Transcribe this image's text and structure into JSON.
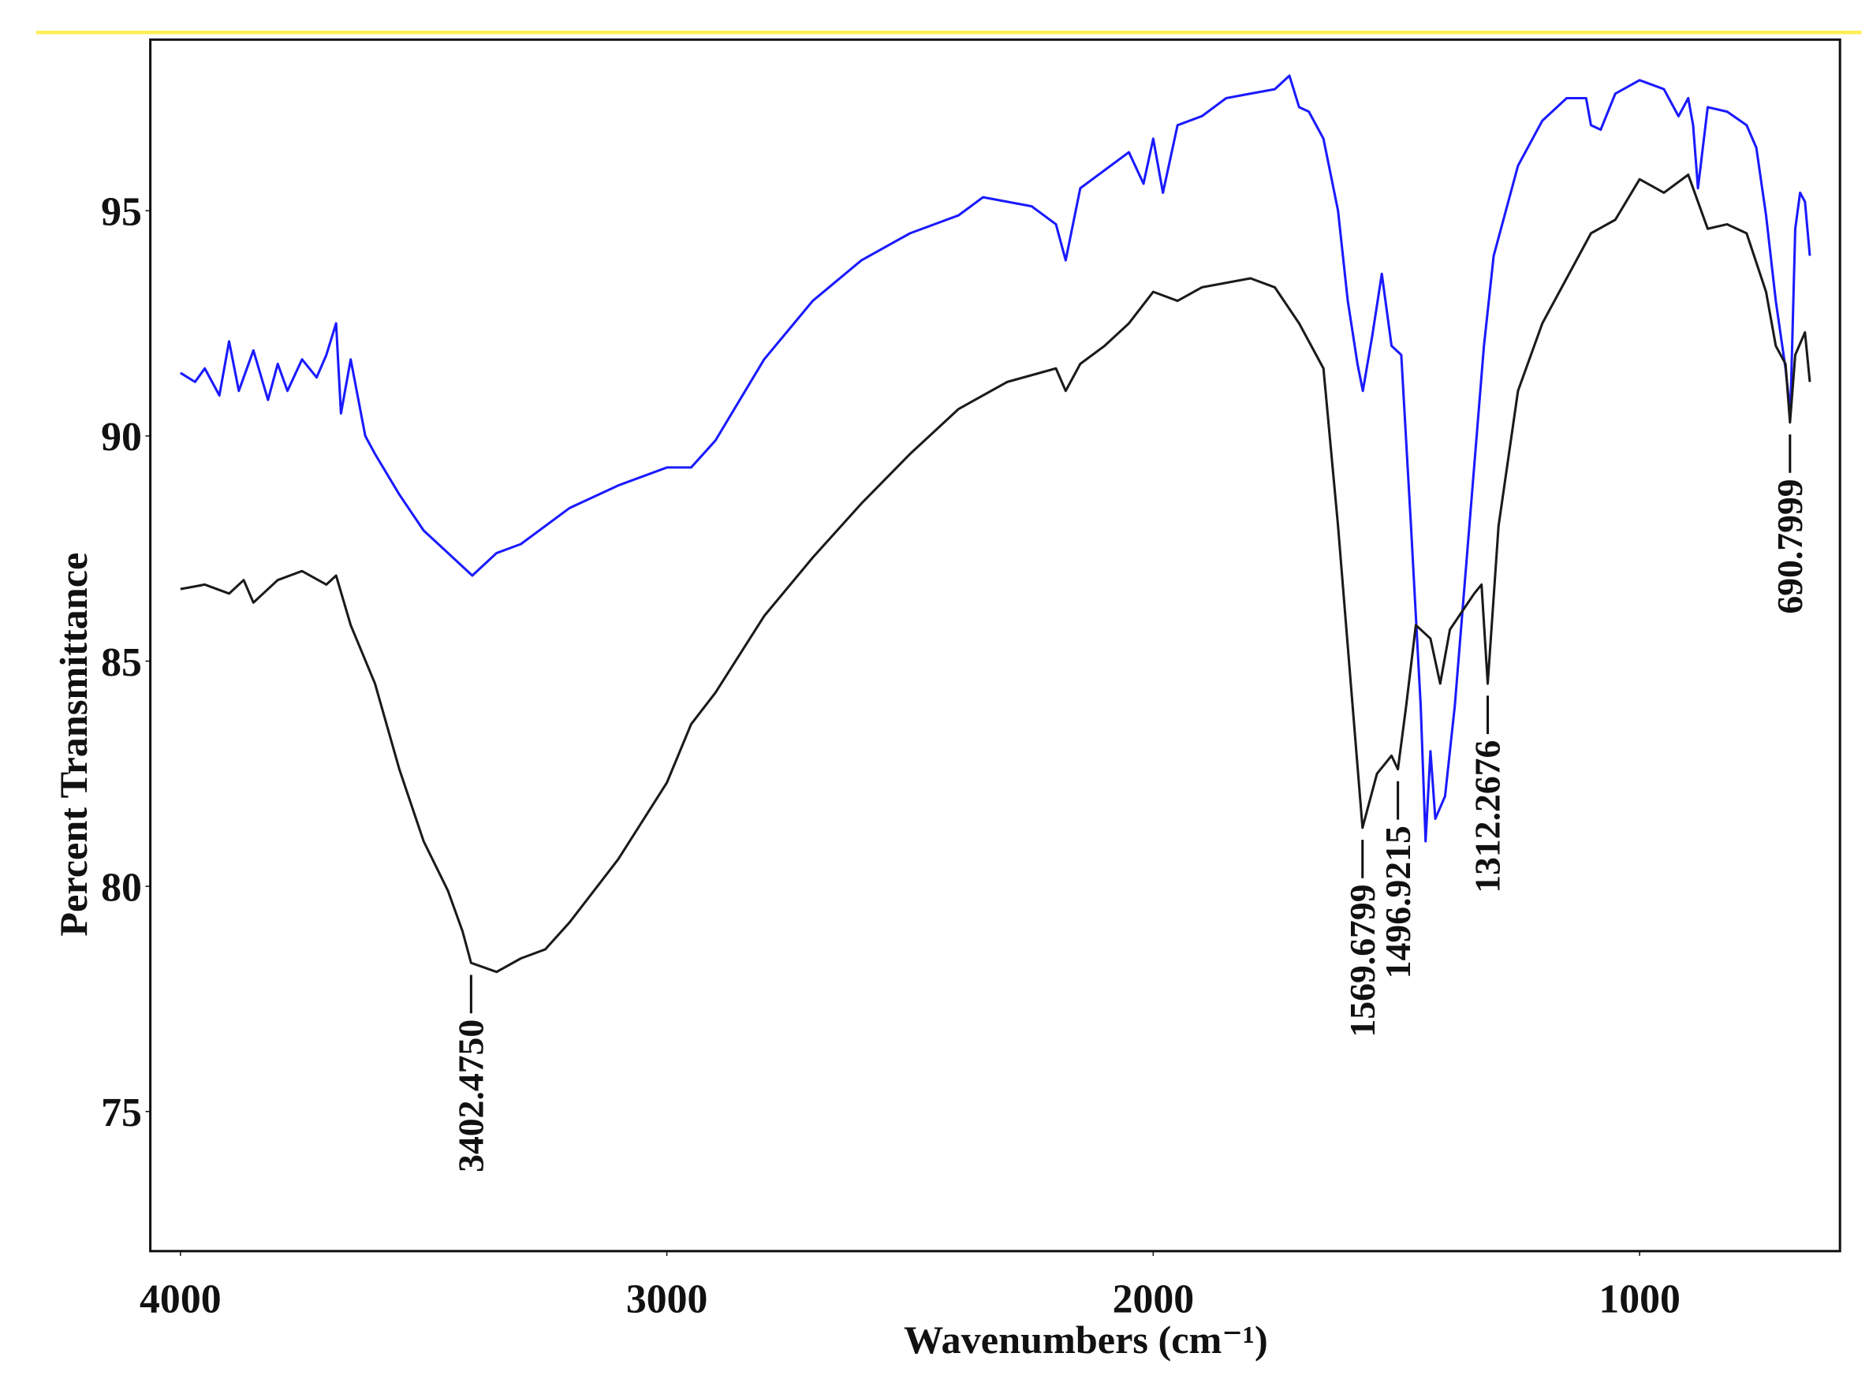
{
  "chart_data": {
    "type": "line",
    "xlabel": "Wavenumbers (cm⁻¹)",
    "ylabel": "Percent Transmittance",
    "xlim": [
      4062,
      588
    ],
    "ylim": [
      71.9,
      98.8
    ],
    "xticks": [
      4000,
      3000,
      2000,
      1000
    ],
    "yticks": [
      75,
      80,
      85,
      90,
      95
    ],
    "grid": false,
    "series": [
      {
        "color": "#1a1aff",
        "x": [
          4000,
          3970,
          3950,
          3920,
          3900,
          3880,
          3850,
          3820,
          3800,
          3780,
          3750,
          3720,
          3700,
          3680,
          3670,
          3650,
          3620,
          3600,
          3550,
          3500,
          3450,
          3400,
          3350,
          3300,
          3200,
          3100,
          3000,
          2950,
          2900,
          2800,
          2700,
          2600,
          2500,
          2400,
          2350,
          2300,
          2250,
          2200,
          2180,
          2150,
          2100,
          2050,
          2020,
          2000,
          1980,
          1950,
          1900,
          1850,
          1800,
          1750,
          1720,
          1700,
          1680,
          1650,
          1620,
          1600,
          1580,
          1569,
          1550,
          1530,
          1510,
          1490,
          1470,
          1450,
          1440,
          1430,
          1420,
          1400,
          1380,
          1350,
          1320,
          1300,
          1250,
          1200,
          1150,
          1110,
          1100,
          1080,
          1050,
          1000,
          950,
          920,
          900,
          890,
          880,
          860,
          820,
          780,
          760,
          740,
          720,
          700,
          690,
          680,
          670,
          660,
          650
        ],
        "values": [
          91.4,
          91.2,
          91.5,
          90.9,
          92.1,
          91.0,
          91.9,
          90.8,
          91.6,
          91.0,
          91.7,
          91.3,
          91.8,
          92.5,
          90.5,
          91.7,
          90.0,
          89.6,
          88.7,
          87.9,
          87.4,
          86.9,
          87.4,
          87.6,
          88.4,
          88.9,
          89.3,
          89.3,
          89.9,
          91.7,
          93.0,
          93.9,
          94.5,
          94.9,
          95.3,
          95.2,
          95.1,
          94.7,
          93.9,
          95.5,
          95.9,
          96.3,
          95.6,
          96.6,
          95.4,
          96.9,
          97.1,
          97.5,
          97.6,
          97.7,
          98.0,
          97.3,
          97.2,
          96.6,
          95.0,
          93.0,
          91.6,
          91.0,
          92.2,
          93.6,
          92.0,
          91.8,
          88.0,
          84.0,
          81.0,
          83.0,
          81.5,
          82.0,
          84.0,
          88.0,
          92.0,
          94.0,
          96.0,
          97.0,
          97.5,
          97.5,
          96.9,
          96.8,
          97.6,
          97.9,
          97.7,
          97.1,
          97.5,
          96.9,
          95.5,
          97.3,
          97.2,
          96.9,
          96.4,
          94.9,
          93.0,
          91.5,
          90.5,
          94.6,
          95.4,
          95.2,
          94.0
        ]
      },
      {
        "color": "#1a1a1a",
        "x": [
          4000,
          3950,
          3900,
          3870,
          3850,
          3800,
          3750,
          3700,
          3680,
          3650,
          3600,
          3550,
          3500,
          3450,
          3420,
          3402.475,
          3350,
          3300,
          3250,
          3200,
          3100,
          3000,
          2950,
          2900,
          2800,
          2700,
          2600,
          2500,
          2400,
          2300,
          2200,
          2180,
          2150,
          2100,
          2050,
          2000,
          1950,
          1900,
          1800,
          1750,
          1700,
          1650,
          1620,
          1590,
          1569.6799,
          1540,
          1510,
          1496.9215,
          1480,
          1460,
          1430,
          1410,
          1390,
          1340,
          1325,
          1312.2676,
          1290,
          1250,
          1200,
          1150,
          1100,
          1050,
          1000,
          950,
          900,
          860,
          820,
          780,
          740,
          720,
          700,
          690.7999,
          680,
          660,
          650
        ],
        "values": [
          86.6,
          86.7,
          86.5,
          86.8,
          86.3,
          86.8,
          87.0,
          86.7,
          86.9,
          85.8,
          84.5,
          82.6,
          81.0,
          79.9,
          79.0,
          78.3,
          78.1,
          78.4,
          78.6,
          79.2,
          80.6,
          82.3,
          83.6,
          84.3,
          86.0,
          87.3,
          88.5,
          89.6,
          90.6,
          91.2,
          91.5,
          91.0,
          91.6,
          92.0,
          92.5,
          93.2,
          93.0,
          93.3,
          93.5,
          93.3,
          92.5,
          91.5,
          88.0,
          84.0,
          81.3,
          82.5,
          82.9,
          82.6,
          84.0,
          85.8,
          85.5,
          84.5,
          85.7,
          86.5,
          86.7,
          84.5,
          88.0,
          91.0,
          92.5,
          93.5,
          94.5,
          94.8,
          95.7,
          95.4,
          95.8,
          94.6,
          94.7,
          94.5,
          93.2,
          92.0,
          91.6,
          90.3,
          91.8,
          92.3,
          91.2
        ]
      }
    ],
    "annotations": [
      {
        "text": "3402.4750",
        "x": 3402.475,
        "y": 78.3
      },
      {
        "text": "1569.6799",
        "x": 1569.6799,
        "y": 81.3
      },
      {
        "text": "1496.9215",
        "x": 1496.9215,
        "y": 82.6
      },
      {
        "text": "1312.2676",
        "x": 1312.2676,
        "y": 84.5
      },
      {
        "text": "690.7999",
        "x": 690.7999,
        "y": 90.3
      }
    ]
  }
}
